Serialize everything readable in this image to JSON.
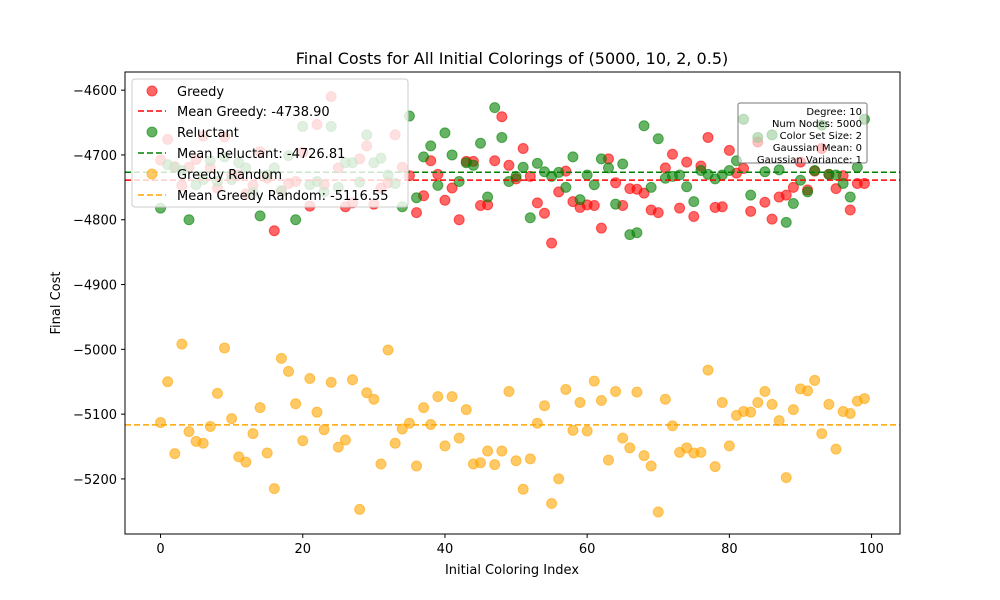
{
  "chart_data": {
    "type": "scatter",
    "title": "Final Costs for All Initial Colorings of (5000, 10, 2, 0.5)",
    "xlabel": "Initial Coloring Index",
    "ylabel": "Final Cost",
    "xlim": [
      -5,
      104
    ],
    "ylim": [
      -5285,
      -4572
    ],
    "x_ticks": [
      0,
      20,
      40,
      60,
      80,
      100
    ],
    "y_ticks": [
      -5200,
      -5100,
      -5000,
      -4900,
      -4800,
      -4700,
      -4600
    ],
    "grid": false,
    "legend_position": "top-left",
    "colors": {
      "greedy": "#ff0000",
      "reluctant": "#008000",
      "greedy_random": "#ffa500"
    },
    "series": [
      {
        "name": "Greedy",
        "color": "#ff0000",
        "mean": -4738.9,
        "mean_label": "Mean Greedy: -4738.90",
        "x": [
          0,
          1,
          2,
          3,
          4,
          5,
          6,
          7,
          8,
          9,
          10,
          11,
          12,
          13,
          14,
          15,
          16,
          17,
          18,
          19,
          20,
          21,
          22,
          23,
          24,
          25,
          26,
          27,
          28,
          29,
          30,
          31,
          32,
          33,
          34,
          35,
          36,
          37,
          38,
          39,
          40,
          41,
          42,
          43,
          44,
          45,
          46,
          47,
          48,
          49,
          50,
          51,
          52,
          53,
          54,
          55,
          56,
          57,
          58,
          59,
          60,
          61,
          62,
          63,
          64,
          65,
          66,
          67,
          68,
          69,
          70,
          71,
          72,
          73,
          74,
          75,
          76,
          77,
          78,
          79,
          80,
          81,
          82,
          83,
          84,
          85,
          86,
          87,
          88,
          89,
          90,
          91,
          92,
          93,
          94,
          95,
          96,
          97,
          98,
          99
        ],
        "values": [
          -4708,
          -4676,
          -4718,
          -4747,
          -4719,
          -4707,
          -4671,
          -4720,
          -4751,
          -4672,
          -4731,
          -4731,
          -4760,
          -4747,
          -4695,
          -4736,
          -4817,
          -4756,
          -4744,
          -4741,
          -4696,
          -4779,
          -4653,
          -4746,
          -4610,
          -4720,
          -4780,
          -4774,
          -4706,
          -4686,
          -4776,
          -4751,
          -4743,
          -4669,
          -4719,
          -4732,
          -4789,
          -4763,
          -4709,
          -4730,
          -4770,
          -4751,
          -4800,
          -4710,
          -4710,
          -4778,
          -4777,
          -4709,
          -4641,
          -4716,
          -4737,
          -4690,
          -4733,
          -4774,
          -4790,
          -4836,
          -4757,
          -4725,
          -4772,
          -4781,
          -4777,
          -4778,
          -4813,
          -4706,
          -4743,
          -4778,
          -4752,
          -4753,
          -4759,
          -4785,
          -4789,
          -4720,
          -4699,
          -4782,
          -4711,
          -4795,
          -4717,
          -4673,
          -4781,
          -4780,
          -4693,
          -4728,
          -4721,
          -4787,
          -4680,
          -4773,
          -4799,
          -4765,
          -4762,
          -4750,
          -4711,
          -4754,
          -4725,
          -4690,
          -4730,
          -4752,
          -4732,
          -4785,
          -4744,
          -4744
        ]
      },
      {
        "name": "Reluctant",
        "color": "#008000",
        "mean": -4726.81,
        "mean_label": "Mean Reluctant: -4726.81",
        "x": [
          0,
          1,
          2,
          3,
          4,
          5,
          6,
          7,
          8,
          9,
          10,
          11,
          12,
          13,
          14,
          15,
          16,
          17,
          18,
          19,
          20,
          21,
          22,
          23,
          24,
          25,
          26,
          27,
          28,
          29,
          30,
          31,
          32,
          33,
          34,
          35,
          36,
          37,
          38,
          39,
          40,
          41,
          42,
          43,
          44,
          45,
          46,
          47,
          48,
          49,
          50,
          51,
          52,
          53,
          54,
          55,
          56,
          57,
          58,
          59,
          60,
          61,
          62,
          63,
          64,
          65,
          66,
          67,
          68,
          69,
          70,
          71,
          72,
          73,
          74,
          75,
          76,
          77,
          78,
          79,
          80,
          81,
          82,
          83,
          84,
          85,
          86,
          87,
          88,
          89,
          90,
          91,
          92,
          93,
          94,
          95,
          96,
          97,
          98,
          99
        ],
        "values": [
          -4782,
          -4715,
          -4719,
          -4724,
          -4800,
          -4746,
          -4738,
          -4709,
          -4741,
          -4703,
          -4738,
          -4712,
          -4720,
          -4758,
          -4794,
          -4731,
          -4720,
          -4755,
          -4701,
          -4800,
          -4656,
          -4746,
          -4741,
          -4757,
          -4656,
          -4750,
          -4712,
          -4712,
          -4742,
          -4669,
          -4712,
          -4705,
          -4731,
          -4744,
          -4780,
          -4640,
          -4766,
          -4703,
          -4686,
          -4747,
          -4666,
          -4700,
          -4741,
          -4712,
          -4716,
          -4682,
          -4765,
          -4627,
          -4673,
          -4741,
          -4733,
          -4719,
          -4797,
          -4713,
          -4726,
          -4733,
          -4727,
          -4750,
          -4703,
          -4769,
          -4731,
          -4746,
          -4706,
          -4720,
          -4776,
          -4714,
          -4823,
          -4820,
          -4655,
          -4750,
          -4675,
          -4736,
          -4733,
          -4731,
          -4749,
          -4772,
          -4724,
          -4730,
          -4737,
          -4731,
          -4724,
          -4709,
          -4645,
          -4762,
          -4673,
          -4726,
          -4669,
          -4723,
          -4804,
          -4775,
          -4739,
          -4757,
          -4724,
          -4654,
          -4730,
          -4731,
          -4744,
          -4765,
          -4719,
          -4645
        ]
      },
      {
        "name": "Greedy Random",
        "color": "#ffa500",
        "mean": -5116.55,
        "mean_label": "Mean Greedy Random: -5116.55",
        "x": [
          0,
          1,
          2,
          3,
          4,
          5,
          6,
          7,
          8,
          9,
          10,
          11,
          12,
          13,
          14,
          15,
          16,
          17,
          18,
          19,
          20,
          21,
          22,
          23,
          24,
          25,
          26,
          27,
          28,
          29,
          30,
          31,
          32,
          33,
          34,
          35,
          36,
          37,
          38,
          39,
          40,
          41,
          42,
          43,
          44,
          45,
          46,
          47,
          48,
          49,
          50,
          51,
          52,
          53,
          54,
          55,
          56,
          57,
          58,
          59,
          60,
          61,
          62,
          63,
          64,
          65,
          66,
          67,
          68,
          69,
          70,
          71,
          72,
          73,
          74,
          75,
          76,
          77,
          78,
          79,
          80,
          81,
          82,
          83,
          84,
          85,
          86,
          87,
          88,
          89,
          90,
          91,
          92,
          93,
          94,
          95,
          96,
          97,
          98,
          99
        ],
        "values": [
          -5113,
          -5050,
          -5161,
          -4992,
          -5127,
          -5142,
          -5145,
          -5119,
          -5068,
          -4998,
          -5107,
          -5166,
          -5174,
          -5130,
          -5090,
          -5160,
          -5215,
          -5014,
          -5034,
          -5084,
          -5141,
          -5045,
          -5097,
          -5124,
          -5051,
          -5151,
          -5140,
          -5047,
          -5247,
          -5067,
          -5077,
          -5177,
          -5001,
          -5145,
          -5123,
          -5114,
          -5180,
          -5090,
          -5116,
          -5073,
          -5149,
          -5073,
          -5137,
          -5093,
          -5177,
          -5175,
          -5157,
          -5178,
          -5157,
          -5065,
          -5172,
          -5216,
          -5169,
          -5114,
          -5087,
          -5238,
          -5200,
          -5062,
          -5125,
          -5082,
          -5126,
          -5049,
          -5079,
          -5171,
          -5065,
          -5137,
          -5152,
          -5066,
          -5164,
          -5180,
          -5251,
          -5077,
          -5118,
          -5159,
          -5152,
          -5160,
          -5159,
          -5032,
          -5181,
          -5082,
          -5149,
          -5102,
          -5096,
          -5097,
          -5082,
          -5065,
          -5085,
          -5110,
          -5198,
          -5093,
          -5061,
          -5064,
          -5048,
          -5130,
          -5085,
          -5154,
          -5096,
          -5099,
          -5080,
          -5076
        ]
      }
    ],
    "annotation_lines": [
      "Degree: 10",
      "Num Nodes: 5000",
      "Color Set Size: 2",
      "Gaussian Mean: 0",
      "Gaussian Variance: 1"
    ]
  }
}
